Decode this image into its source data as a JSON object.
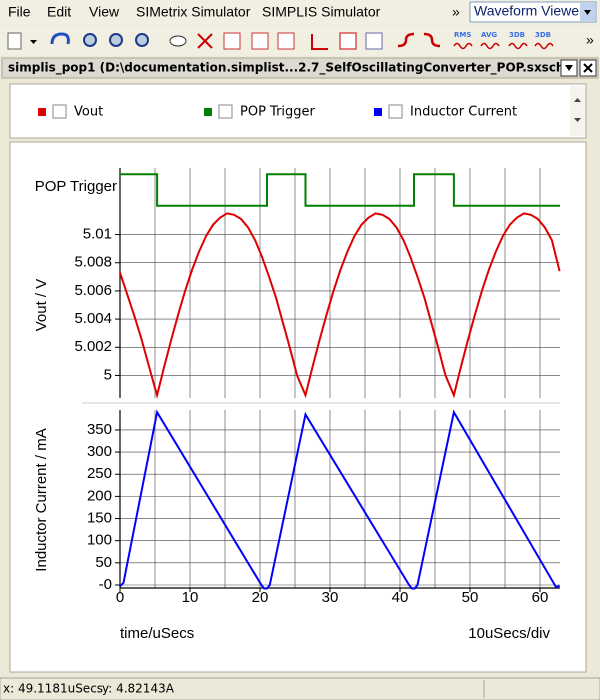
{
  "menu": [
    "File",
    "Edit",
    "View",
    "SIMetrix Simulator",
    "SIMPLIS Simulator"
  ],
  "menu_overflow": "»",
  "window_selector": "Waveform Viewer",
  "toolbar_labels": [
    "RMS",
    "AVG",
    "3DB",
    "3DB"
  ],
  "toolbar_overflow": "»",
  "window_title": "simplis_pop1 (D:\\documentation.simplist...2.7_SelfOscillatingConverter_POP.sxsch)",
  "chart_data": [
    {
      "type": "line",
      "ylabel": "Vout / V",
      "series": [
        {
          "name": "Vout",
          "color": "#e00000",
          "values": [
            5.0073,
            5.0058,
            5.0043,
            5.0027,
            5.0009,
            4.9991,
            4.9986,
            5.0006,
            5.0025,
            5.0043,
            5.006,
            5.0075,
            5.0088,
            5.0099,
            5.0107,
            5.0112,
            5.0115,
            5.0114,
            5.0111,
            5.0105,
            5.0096,
            5.0084,
            5.007,
            5.0055,
            5.0037,
            5.0019,
            5.0,
            4.9986,
            5.0006,
            5.0025,
            5.0043,
            5.006,
            5.0075,
            5.0088,
            5.0099,
            5.0107,
            5.0112,
            5.0115,
            5.0114,
            5.0111,
            5.0105,
            5.0096,
            5.0084,
            5.007,
            5.0055,
            5.0037,
            5.0019,
            5.0,
            4.9986,
            5.0006,
            5.0025,
            5.0043,
            5.006,
            5.0075,
            5.0088,
            5.0099,
            5.0107,
            5.0112,
            5.0115,
            5.0114,
            5.0111,
            5.0105,
            5.0096,
            5.0074
          ]
        }
      ],
      "x": [
        0,
        1,
        2,
        3,
        4,
        5,
        5.3,
        6.3,
        7.3,
        8.3,
        9.3,
        10.3,
        11.3,
        12.3,
        13.3,
        14.3,
        15.3,
        16.3,
        17.3,
        18.3,
        19.3,
        20.3,
        21.3,
        22.3,
        23.3,
        24.3,
        25.3,
        26.5,
        27.5,
        28.5,
        29.5,
        30.5,
        31.5,
        32.5,
        33.5,
        34.5,
        35.5,
        36.5,
        37.5,
        38.5,
        39.5,
        40.5,
        41.5,
        42.5,
        43.5,
        44.5,
        45.5,
        46.5,
        47.7,
        48.7,
        49.7,
        50.7,
        51.7,
        52.7,
        53.7,
        54.7,
        55.7,
        56.7,
        57.7,
        58.7,
        59.7,
        60.7,
        61.7,
        62.8
      ],
      "xlim": [
        0,
        62.86
      ],
      "ylim": [
        4.9984,
        5.0116
      ],
      "yticks": [
        5,
        5.002,
        5.004,
        5.006,
        5.008,
        5.01
      ],
      "xgrid": [
        5,
        10,
        15,
        20,
        25,
        30,
        35,
        40,
        45,
        50,
        55,
        60
      ],
      "grid": true
    },
    {
      "type": "line",
      "ylabel": "POP Trigger",
      "series": [
        {
          "name": "POP Trigger",
          "color": "#008000",
          "values": [
            1,
            1,
            0,
            0,
            1,
            1,
            0,
            0,
            1,
            1,
            0,
            0
          ]
        }
      ],
      "x": [
        0,
        5.3,
        5.3,
        21.0,
        21.0,
        26.5,
        26.5,
        42.0,
        42.0,
        47.7,
        47.7,
        62.86
      ],
      "xlim": [
        0,
        62.86
      ],
      "ylim": [
        -0.2,
        1.2
      ],
      "xgrid": [
        5,
        10,
        15,
        20,
        25,
        30,
        35,
        40,
        45,
        50,
        55,
        60
      ],
      "grid": true
    },
    {
      "type": "line",
      "ylabel": "Inductor Current / mA",
      "xlabel": "time/uSecs",
      "scale_label": "10uSecs/div",
      "series": [
        {
          "name": "Inductor Current",
          "color": "#0000ff",
          "values": [
            -3,
            5,
            390,
            0,
            -8,
            -8,
            0,
            385,
            0,
            -8,
            -8,
            0,
            390,
            -5,
            -2
          ]
        }
      ],
      "x": [
        0,
        0.5,
        5.3,
        20.2,
        20.6,
        21.0,
        21.4,
        26.5,
        41.3,
        41.7,
        42.1,
        42.5,
        47.7,
        62.3,
        62.8
      ],
      "xlim": [
        0,
        62.86
      ],
      "ylim": [
        -6.8,
        395
      ],
      "xticks": [
        0,
        10,
        20,
        30,
        40,
        50,
        60
      ],
      "yticks": [
        {
          "value": 0,
          "label": "-0"
        },
        50,
        100,
        150,
        200,
        250,
        300,
        350
      ],
      "xgrid": [
        5,
        10,
        15,
        20,
        25,
        30,
        35,
        40,
        45,
        50,
        55,
        60
      ],
      "grid": true
    }
  ],
  "status": {
    "x": "x: 49.1181uSecs",
    "y": "y: 4.82143A"
  }
}
